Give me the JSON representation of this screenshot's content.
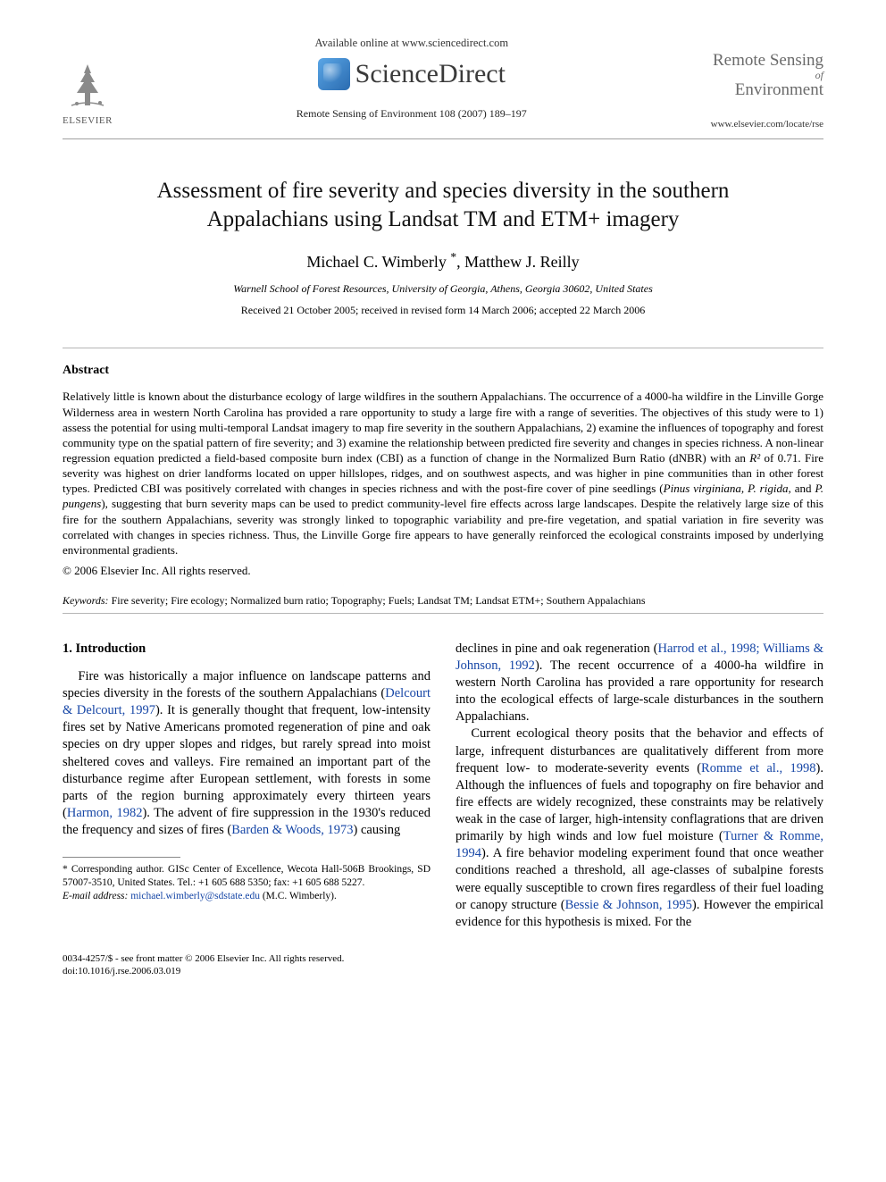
{
  "colors": {
    "text": "#000000",
    "link": "#1646a6",
    "rule": "#b5b5b5",
    "muted": "#6a6a6a",
    "background": "#ffffff"
  },
  "typography": {
    "body_family": "Times New Roman",
    "body_size_pt": 11,
    "title_size_pt": 19,
    "authors_size_pt": 14,
    "abstract_size_pt": 10,
    "keywords_size_pt": 9,
    "footnote_size_pt": 8.5
  },
  "header": {
    "available_online": "Available online at www.sciencedirect.com",
    "sciencedirect": "ScienceDirect",
    "journal_reference": "Remote Sensing of Environment 108 (2007) 189–197",
    "elsevier": "ELSEVIER",
    "journal_title_line1": "Remote Sensing",
    "journal_title_of": "of",
    "journal_title_line2": "Environment",
    "journal_url": "www.elsevier.com/locate/rse"
  },
  "article": {
    "title": "Assessment of fire severity and species diversity in the southern Appalachians using Landsat TM and ETM+ imagery",
    "authors_html": "Michael C. Wimberly <sup>*</sup>, Matthew J. Reilly",
    "affiliation": "Warnell School of Forest Resources, University of Georgia, Athens, Georgia 30602, United States",
    "dates": "Received 21 October 2005; received in revised form 14 March 2006; accepted 22 March 2006",
    "abstract_heading": "Abstract",
    "abstract_body": "Relatively little is known about the disturbance ecology of large wildfires in the southern Appalachians. The occurrence of a 4000-ha wildfire in the Linville Gorge Wilderness area in western North Carolina has provided a rare opportunity to study a large fire with a range of severities. The objectives of this study were to 1) assess the potential for using multi-temporal Landsat imagery to map fire severity in the southern Appalachians, 2) examine the influences of topography and forest community type on the spatial pattern of fire severity; and 3) examine the relationship between predicted fire severity and changes in species richness. A non-linear regression equation predicted a field-based composite burn index (CBI) as a function of change in the Normalized Burn Ratio (dNBR) with an ",
    "abstract_r2": "R²",
    "abstract_body2": " of 0.71. Fire severity was highest on drier landforms located on upper hillslopes, ridges, and on southwest aspects, and was higher in pine communities than in other forest types. Predicted CBI was positively correlated with changes in species richness and with the post-fire cover of pine seedlings (",
    "abstract_species": "Pinus virginiana, P. rigida,",
    "abstract_and": " and ",
    "abstract_species2": "P. pungens",
    "abstract_body3": "), suggesting that burn severity maps can be used to predict community-level fire effects across large landscapes. Despite the relatively large size of this fire for the southern Appalachians, severity was strongly linked to topographic variability and pre-fire vegetation, and spatial variation in fire severity was correlated with changes in species richness. Thus, the Linville Gorge fire appears to have generally reinforced the ecological constraints imposed by underlying environmental gradients.",
    "copyright": "© 2006 Elsevier Inc. All rights reserved.",
    "keywords_label": "Keywords:",
    "keywords": " Fire severity; Fire ecology; Normalized burn ratio; Topography; Fuels; Landsat TM; Landsat ETM+; Southern Appalachians"
  },
  "intro": {
    "heading": "1. Introduction",
    "left": {
      "p1a": "Fire was historically a major influence on landscape patterns and species diversity in the forests of the southern Appalachians (",
      "ref1": "Delcourt & Delcourt, 1997",
      "p1b": "). It is generally thought that frequent, low-intensity fires set by Native Americans promoted regeneration of pine and oak species on dry upper slopes and ridges, but rarely spread into moist sheltered coves and valleys. Fire remained an important part of the disturbance regime after European settlement, with forests in some parts of the region burning approximately every thirteen years (",
      "ref2": "Harmon, 1982",
      "p1c": "). The advent of fire suppression in the 1930's reduced the frequency and sizes of fires (",
      "ref3": "Barden & Woods, 1973",
      "p1d": ") causing"
    },
    "right": {
      "p1a": "declines in pine and oak regeneration (",
      "ref1": "Harrod et al., 1998; Williams & Johnson, 1992",
      "p1b": "). The recent occurrence of a 4000-ha wildfire in western North Carolina has provided a rare opportunity for research into the ecological effects of large-scale disturbances in the southern Appalachians.",
      "p2a": "Current ecological theory posits that the behavior and effects of large, infrequent disturbances are qualitatively different from more frequent low- to moderate-severity events (",
      "ref2": "Romme et al., 1998",
      "p2b": "). Although the influences of fuels and topography on fire behavior and fire effects are widely recognized, these constraints may be relatively weak in the case of larger, high-intensity conflagrations that are driven primarily by high winds and low fuel moisture (",
      "ref3": "Turner & Romme, 1994",
      "p2c": "). A fire behavior modeling experiment found that once weather conditions reached a threshold, all age-classes of subalpine forests were equally susceptible to crown fires regardless of their fuel loading or canopy structure (",
      "ref4": "Bessie & Johnson, 1995",
      "p2d": "). However the empirical evidence for this hypothesis is mixed. For the"
    }
  },
  "footnote": {
    "corr": "* Corresponding author. GISc Center of Excellence, Wecota Hall-506B Brookings, SD 57007-3510, United States. Tel.: +1 605 688 5350; fax: +1 605 688 5227.",
    "email_label": "E-mail address:",
    "email": "michael.wimberly@sdstate.edu",
    "email_tail": " (M.C. Wimberly)."
  },
  "footer": {
    "line1": "0034-4257/$ - see front matter © 2006 Elsevier Inc. All rights reserved.",
    "line2": "doi:10.1016/j.rse.2006.03.019"
  }
}
